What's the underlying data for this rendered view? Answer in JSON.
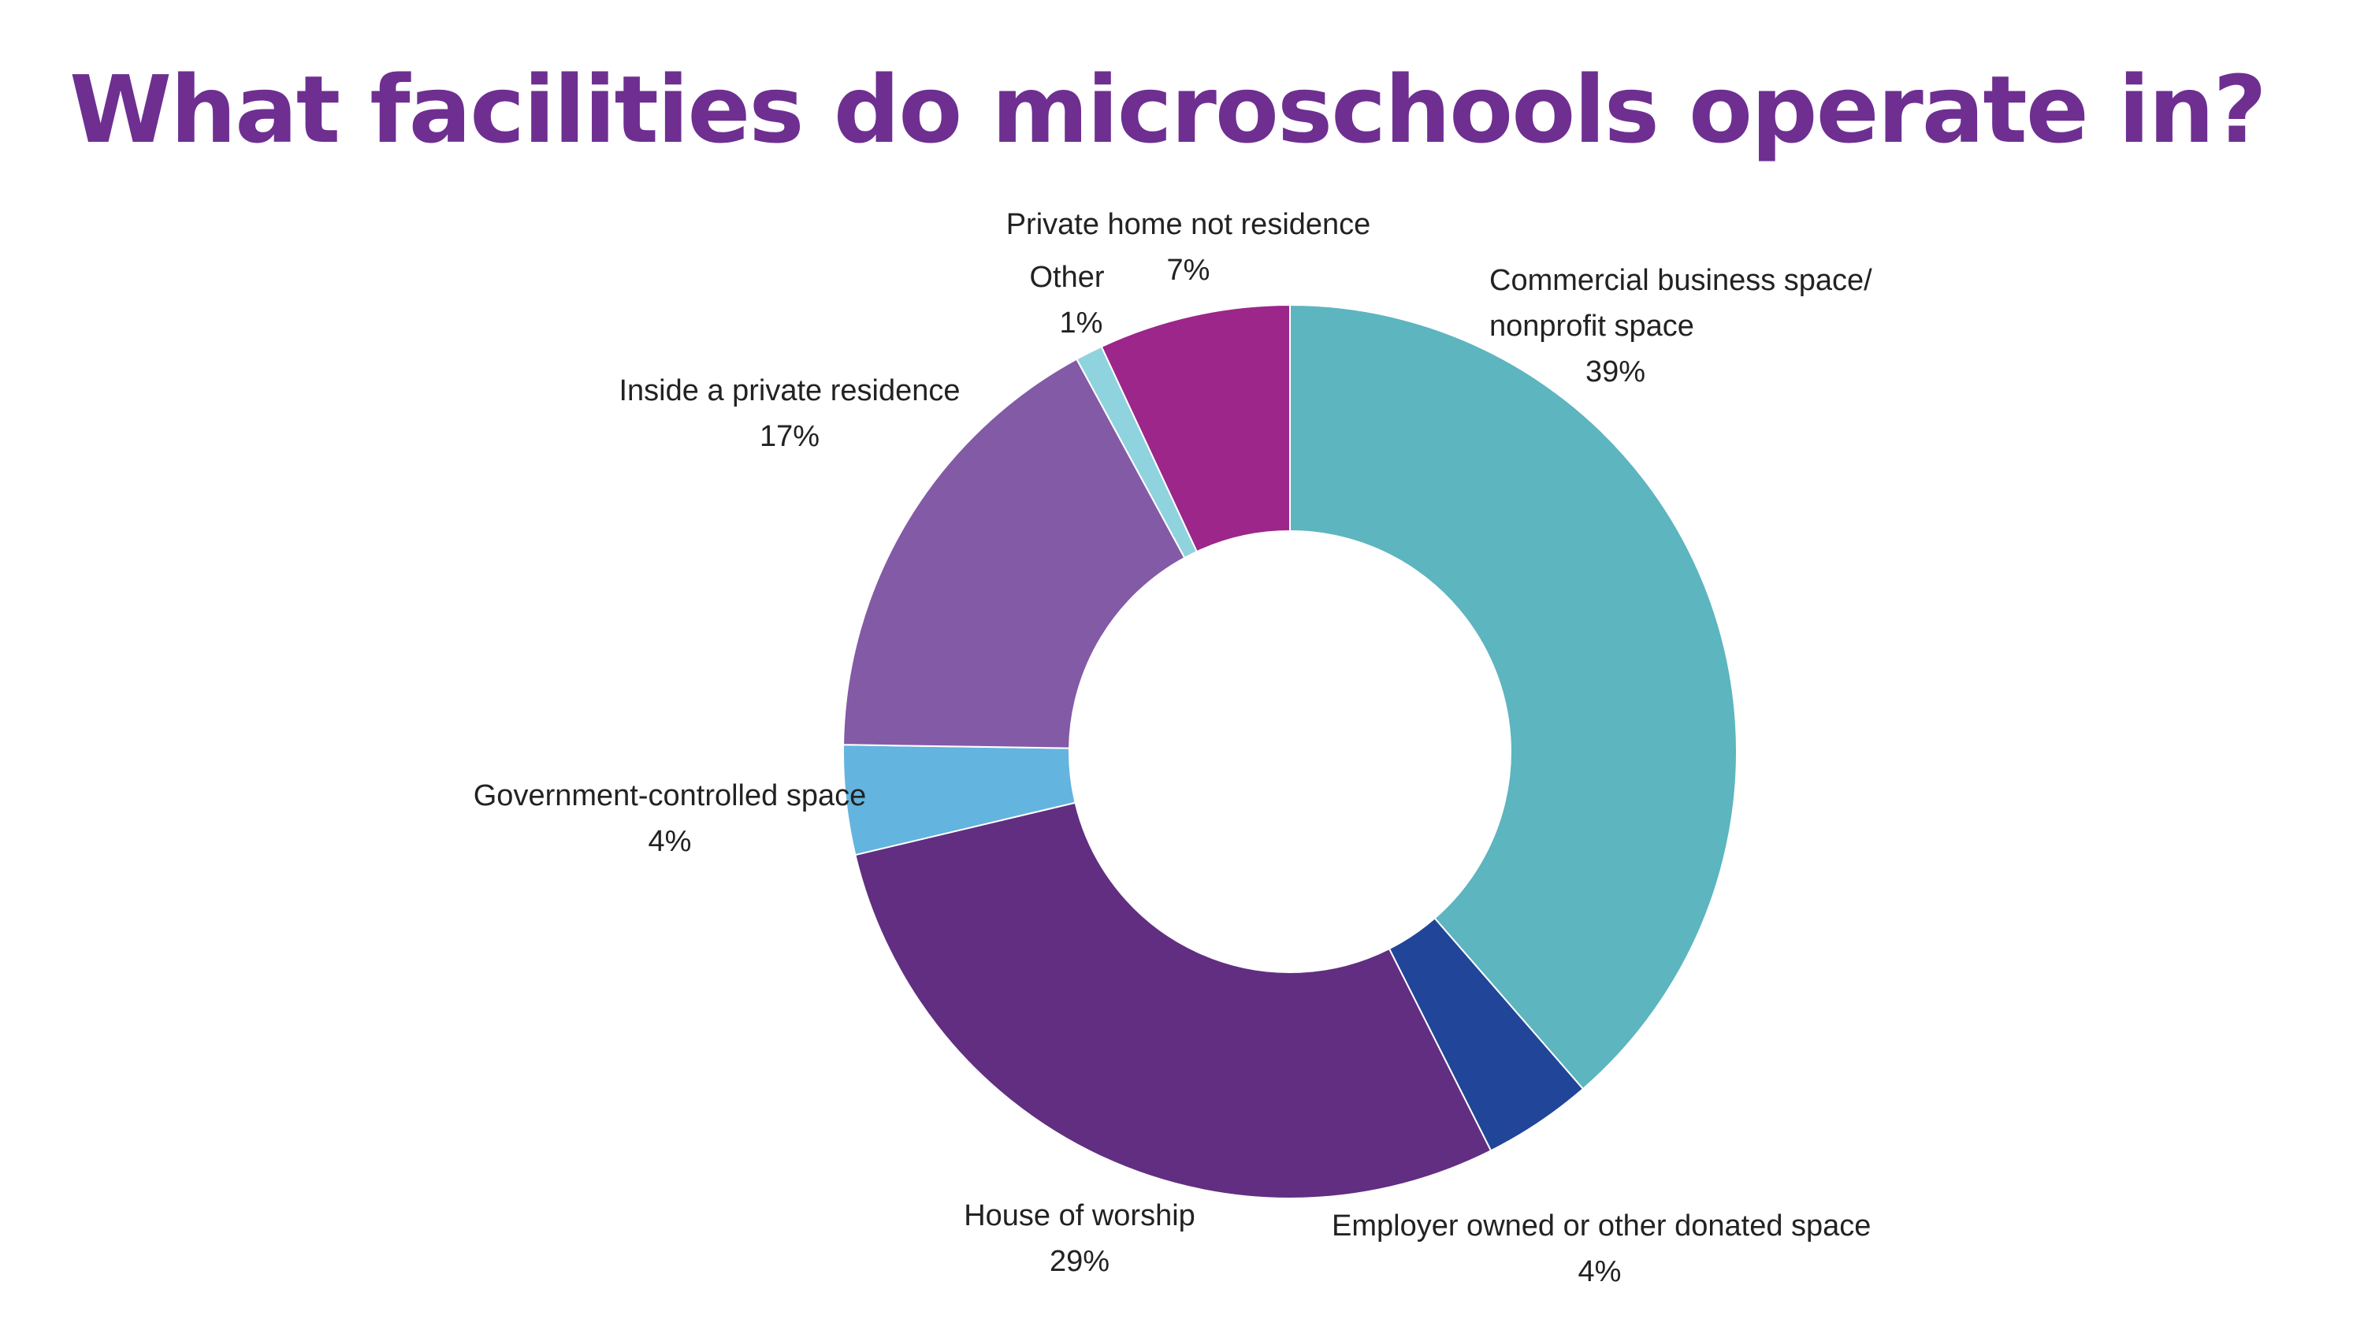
{
  "page": {
    "title": "What facilities do microschools operate in?"
  },
  "chart_data": {
    "type": "pie",
    "donut": true,
    "start_position": "12 o'clock, clockwise",
    "slices": [
      {
        "label": "Commercial business space/ nonprofit space",
        "label_lines": [
          "Commercial business space/",
          "nonprofit space"
        ],
        "value": 39,
        "display": "39%",
        "color": "#5cb5bf"
      },
      {
        "label": "Employer owned or other donated space",
        "label_lines": [
          "Employer owned or other donated space"
        ],
        "value": 4,
        "display": "4%",
        "color": "#214598"
      },
      {
        "label": "House of worship",
        "label_lines": [
          "House of worship"
        ],
        "value": 29,
        "display": "29%",
        "color": "#612e82"
      },
      {
        "label": "Government-controlled space",
        "label_lines": [
          "Government-controlled space"
        ],
        "value": 4,
        "display": "4%",
        "color": "#63b4de"
      },
      {
        "label": "Inside a private residence",
        "label_lines": [
          "Inside a private residence"
        ],
        "value": 17,
        "display": "17%",
        "color": "#835aa6"
      },
      {
        "label": "Other",
        "label_lines": [
          "Other"
        ],
        "value": 1,
        "display": "1%",
        "color": "#8fd3de"
      },
      {
        "label": "Private home not residence",
        "label_lines": [
          "Private home not residence"
        ],
        "value": 7,
        "display": "7%",
        "color": "#9c2689"
      }
    ]
  }
}
